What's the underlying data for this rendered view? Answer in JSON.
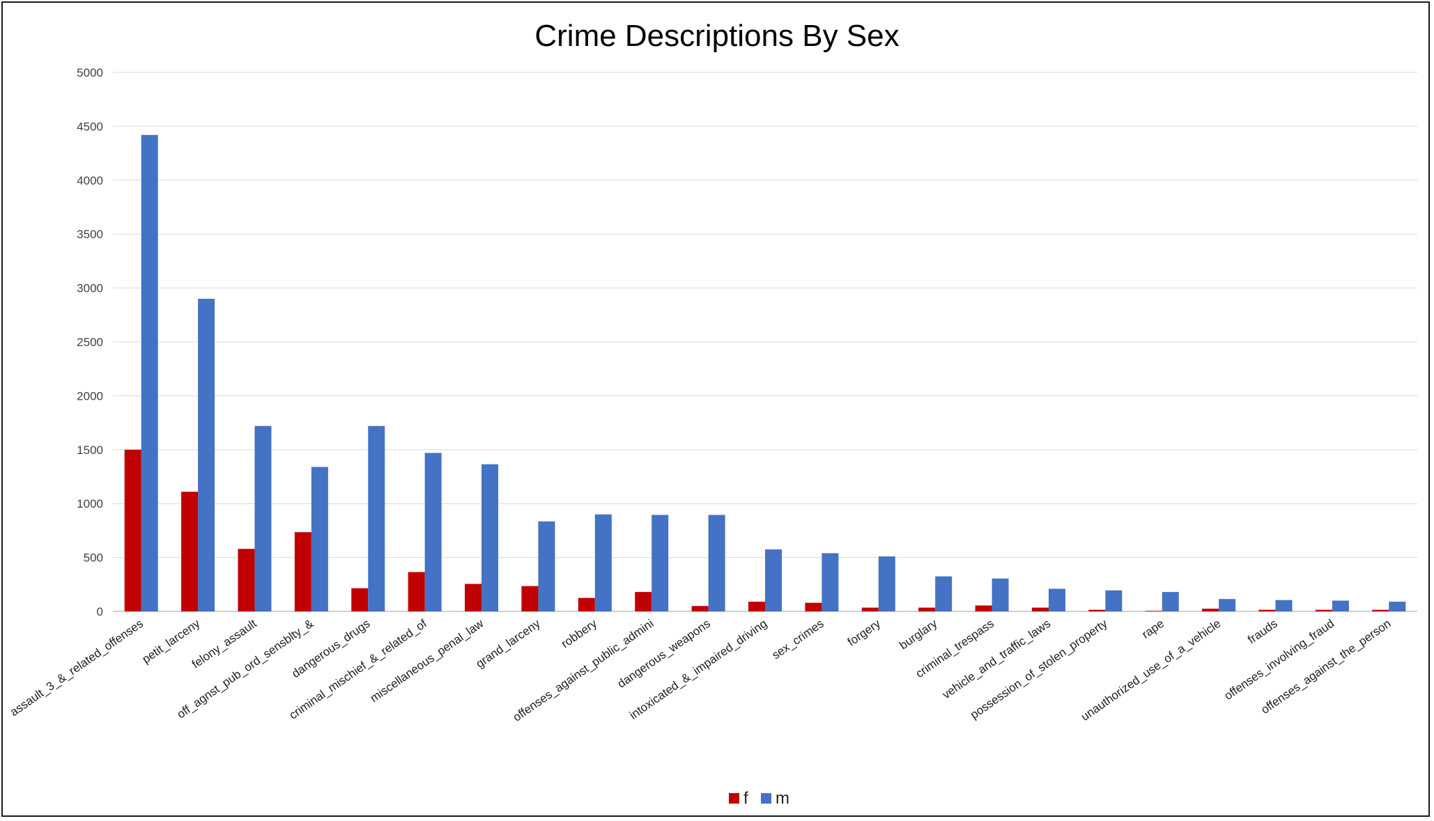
{
  "chart_data": {
    "type": "bar",
    "title": "Crime Descriptions By Sex",
    "xlabel": "",
    "ylabel": "",
    "ylim": [
      0,
      5000
    ],
    "yticks": [
      0,
      500,
      1000,
      1500,
      2000,
      2500,
      3000,
      3500,
      4000,
      4500,
      5000
    ],
    "grid": true,
    "legend": "bottom-center",
    "categories": [
      "assault_3_&_related_offenses",
      "petit_larceny",
      "felony_assault",
      "off_agnst_pub_ord_sensblty_&",
      "dangerous_drugs",
      "criminal_mischief_&_related_of",
      "miscellaneous_penal_law",
      "grand_larceny",
      "robbery",
      "offenses_against_public_admini",
      "dangerous_weapons",
      "intoxicated_&_impaired_driving",
      "sex_crimes",
      "forgery",
      "burglary",
      "criminal_trespass",
      "vehicle_and_traffic_laws",
      "possession_of_stolen_property",
      "rape",
      "unauthorized_use_of_a_vehicle",
      "frauds",
      "offenses_involving_fraud",
      "offenses_against_the_person"
    ],
    "series": [
      {
        "name": "f",
        "color": "#c00000",
        "values": [
          1500,
          1110,
          580,
          735,
          215,
          365,
          255,
          235,
          125,
          180,
          50,
          90,
          80,
          35,
          35,
          55,
          35,
          15,
          5,
          25,
          15,
          15,
          15
        ]
      },
      {
        "name": "m",
        "color": "#4472c4",
        "values": [
          4420,
          2900,
          1720,
          1340,
          1720,
          1470,
          1365,
          835,
          900,
          895,
          895,
          575,
          540,
          510,
          325,
          305,
          210,
          195,
          180,
          115,
          105,
          100,
          90
        ]
      }
    ]
  }
}
